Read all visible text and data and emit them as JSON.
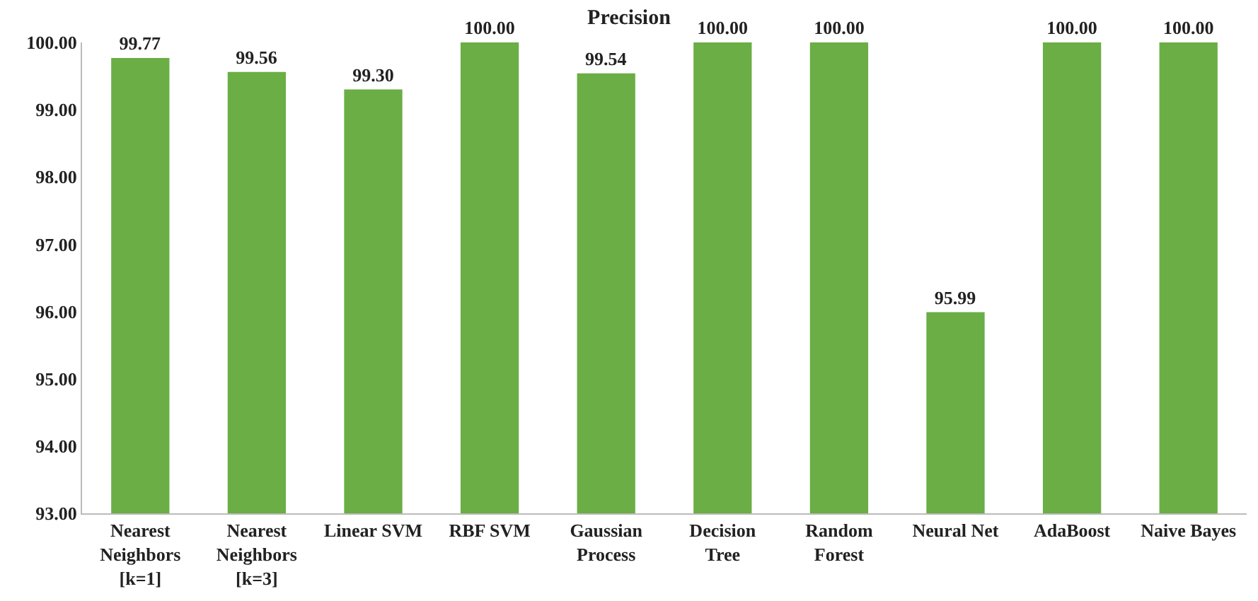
{
  "chart_data": {
    "type": "bar",
    "title": "Precision",
    "categories": [
      "Nearest Neighbors [k=1]",
      "Nearest Neighbors [k=3]",
      "Linear SVM",
      "RBF SVM",
      "Gaussian Process",
      "Decision Tree",
      "Random Forest",
      "Neural Net",
      "AdaBoost",
      "Naive Bayes"
    ],
    "values": [
      99.77,
      99.56,
      99.3,
      100.0,
      99.54,
      100.0,
      100.0,
      95.99,
      100.0,
      100.0
    ],
    "value_labels": [
      "99.77",
      "99.56",
      "99.30",
      "100.00",
      "99.54",
      "100.00",
      "100.00",
      "95.99",
      "100.00",
      "100.00"
    ],
    "color": "#6aae45",
    "ylim": [
      93,
      100
    ],
    "yticks": [
      {
        "value": 93,
        "label": "93.00"
      },
      {
        "value": 94,
        "label": "94.00"
      },
      {
        "value": 95,
        "label": "95.00"
      },
      {
        "value": 96,
        "label": "96.00"
      },
      {
        "value": 97,
        "label": "97.00"
      },
      {
        "value": 98,
        "label": "98.00"
      },
      {
        "value": 99,
        "label": "99.00"
      },
      {
        "value": 100,
        "label": "100.00"
      }
    ],
    "grid": false,
    "legend": false
  }
}
